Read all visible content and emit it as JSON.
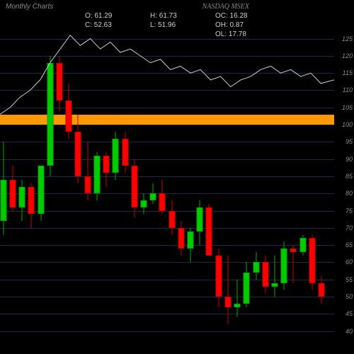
{
  "header": {
    "title_left": "Monthly Charts",
    "title_right": "NASDAQ MSEX",
    "ohlc": {
      "o": "O: 61.29",
      "h": "H: 61.73",
      "oc": "OC: 16.28",
      "c": "C: 52.63",
      "l": "L: 51.96",
      "oh": "OH: 0.87",
      "ol": "OL: 17.78"
    }
  },
  "chart": {
    "background_color": "#000000",
    "grid_color": "#1a2a4a",
    "price_min": 35,
    "price_max": 128,
    "y_ticks": [
      40,
      45,
      50,
      55,
      60,
      65,
      70,
      75,
      80,
      85,
      90,
      95,
      100,
      105,
      110,
      115,
      120,
      125
    ],
    "highlight_zone": {
      "low": 100,
      "high": 103,
      "color": "#ff9900"
    },
    "up_color": "#00cc00",
    "down_color": "#ff0000",
    "wick_up_color": "#00aa00",
    "wick_down_color": "#cc0000",
    "candle_width": 9,
    "overlay_line_color": "#cccccc",
    "overlay_points": [
      [
        0,
        103
      ],
      [
        0.03,
        105
      ],
      [
        0.06,
        108
      ],
      [
        0.09,
        110
      ],
      [
        0.12,
        113
      ],
      [
        0.15,
        118
      ],
      [
        0.18,
        122
      ],
      [
        0.21,
        126
      ],
      [
        0.24,
        123
      ],
      [
        0.27,
        125
      ],
      [
        0.3,
        122
      ],
      [
        0.33,
        124
      ],
      [
        0.36,
        121
      ],
      [
        0.39,
        122
      ],
      [
        0.42,
        120
      ],
      [
        0.45,
        118
      ],
      [
        0.48,
        119
      ],
      [
        0.51,
        116
      ],
      [
        0.54,
        117
      ],
      [
        0.57,
        115
      ],
      [
        0.6,
        116
      ],
      [
        0.63,
        113
      ],
      [
        0.66,
        114
      ],
      [
        0.69,
        111
      ],
      [
        0.72,
        113
      ],
      [
        0.75,
        114
      ],
      [
        0.78,
        116
      ],
      [
        0.81,
        117
      ],
      [
        0.84,
        115
      ],
      [
        0.87,
        116
      ],
      [
        0.9,
        114
      ],
      [
        0.93,
        115
      ],
      [
        0.96,
        112
      ],
      [
        1.0,
        113
      ]
    ],
    "candles": [
      {
        "x": 0.01,
        "o": 72,
        "h": 95,
        "l": 68,
        "c": 84
      },
      {
        "x": 0.038,
        "o": 84,
        "h": 88,
        "l": 75,
        "c": 76
      },
      {
        "x": 0.066,
        "o": 76,
        "h": 84,
        "l": 72,
        "c": 82
      },
      {
        "x": 0.094,
        "o": 82,
        "h": 83,
        "l": 70,
        "c": 74
      },
      {
        "x": 0.122,
        "o": 74,
        "h": 88,
        "l": 72,
        "c": 88
      },
      {
        "x": 0.15,
        "o": 88,
        "h": 120,
        "l": 85,
        "c": 118
      },
      {
        "x": 0.178,
        "o": 118,
        "h": 120,
        "l": 104,
        "c": 107
      },
      {
        "x": 0.206,
        "o": 107,
        "h": 112,
        "l": 96,
        "c": 98
      },
      {
        "x": 0.234,
        "o": 98,
        "h": 103,
        "l": 83,
        "c": 85
      },
      {
        "x": 0.262,
        "o": 85,
        "h": 95,
        "l": 78,
        "c": 80
      },
      {
        "x": 0.29,
        "o": 80,
        "h": 92,
        "l": 78,
        "c": 91
      },
      {
        "x": 0.318,
        "o": 91,
        "h": 92,
        "l": 82,
        "c": 86
      },
      {
        "x": 0.346,
        "o": 86,
        "h": 98,
        "l": 84,
        "c": 96
      },
      {
        "x": 0.374,
        "o": 96,
        "h": 98,
        "l": 86,
        "c": 88
      },
      {
        "x": 0.402,
        "o": 88,
        "h": 90,
        "l": 73,
        "c": 76
      },
      {
        "x": 0.43,
        "o": 76,
        "h": 80,
        "l": 74,
        "c": 78
      },
      {
        "x": 0.458,
        "o": 78,
        "h": 83,
        "l": 77,
        "c": 80
      },
      {
        "x": 0.486,
        "o": 80,
        "h": 84,
        "l": 74,
        "c": 75
      },
      {
        "x": 0.514,
        "o": 75,
        "h": 78,
        "l": 68,
        "c": 70
      },
      {
        "x": 0.542,
        "o": 70,
        "h": 72,
        "l": 62,
        "c": 64
      },
      {
        "x": 0.57,
        "o": 64,
        "h": 70,
        "l": 60,
        "c": 69
      },
      {
        "x": 0.598,
        "o": 69,
        "h": 78,
        "l": 65,
        "c": 76
      },
      {
        "x": 0.626,
        "o": 76,
        "h": 77,
        "l": 62,
        "c": 62
      },
      {
        "x": 0.654,
        "o": 62,
        "h": 64,
        "l": 47,
        "c": 50
      },
      {
        "x": 0.682,
        "o": 50,
        "h": 62,
        "l": 42,
        "c": 47
      },
      {
        "x": 0.71,
        "o": 47,
        "h": 55,
        "l": 44,
        "c": 48
      },
      {
        "x": 0.738,
        "o": 48,
        "h": 60,
        "l": 47,
        "c": 57
      },
      {
        "x": 0.766,
        "o": 57,
        "h": 63,
        "l": 55,
        "c": 60
      },
      {
        "x": 0.794,
        "o": 60,
        "h": 62,
        "l": 51,
        "c": 53
      },
      {
        "x": 0.822,
        "o": 53,
        "h": 62,
        "l": 50,
        "c": 54
      },
      {
        "x": 0.85,
        "o": 54,
        "h": 66,
        "l": 52,
        "c": 64
      },
      {
        "x": 0.878,
        "o": 64,
        "h": 65,
        "l": 54,
        "c": 63
      },
      {
        "x": 0.906,
        "o": 63,
        "h": 68,
        "l": 62,
        "c": 67
      },
      {
        "x": 0.934,
        "o": 67,
        "h": 68,
        "l": 52,
        "c": 54
      },
      {
        "x": 0.962,
        "o": 54,
        "h": 56,
        "l": 48,
        "c": 50
      }
    ]
  }
}
